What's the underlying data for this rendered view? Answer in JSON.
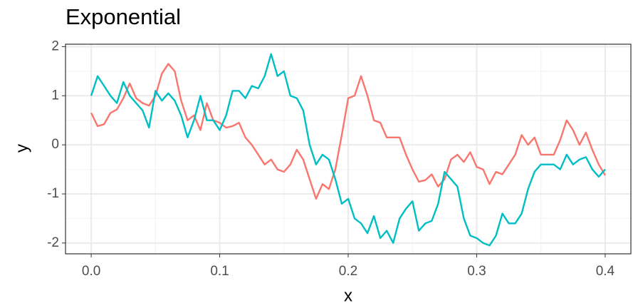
{
  "chart_data": {
    "type": "line",
    "title": "Exponential",
    "x_label": "x",
    "y_label": "y",
    "x": [
      0,
      0.005,
      0.01,
      0.015,
      0.02,
      0.025,
      0.03,
      0.035,
      0.04,
      0.045,
      0.05,
      0.055,
      0.06,
      0.065,
      0.07,
      0.075,
      0.08,
      0.085,
      0.09,
      0.095,
      0.1,
      0.105,
      0.11,
      0.115,
      0.12,
      0.125,
      0.13,
      0.135,
      0.14,
      0.145,
      0.15,
      0.155,
      0.16,
      0.165,
      0.17,
      0.175,
      0.18,
      0.185,
      0.19,
      0.195,
      0.2,
      0.205,
      0.21,
      0.215,
      0.22,
      0.225,
      0.23,
      0.235,
      0.24,
      0.245,
      0.25,
      0.255,
      0.26,
      0.265,
      0.27,
      0.275,
      0.28,
      0.285,
      0.29,
      0.295,
      0.3,
      0.305,
      0.31,
      0.315,
      0.32,
      0.325,
      0.33,
      0.335,
      0.34,
      0.345,
      0.35,
      0.355,
      0.36,
      0.365,
      0.37,
      0.375,
      0.38,
      0.385,
      0.39,
      0.395,
      0.4
    ],
    "series": [
      {
        "color": "#F8766D",
        "values": [
          0.65,
          0.38,
          0.42,
          0.65,
          0.72,
          0.95,
          1.25,
          0.95,
          0.85,
          0.8,
          1.0,
          1.45,
          1.65,
          1.5,
          0.9,
          0.5,
          0.6,
          0.3,
          0.85,
          0.5,
          0.45,
          0.35,
          0.38,
          0.45,
          0.15,
          0.0,
          -0.2,
          -0.4,
          -0.3,
          -0.5,
          -0.55,
          -0.4,
          -0.1,
          -0.3,
          -0.7,
          -1.1,
          -0.8,
          -0.9,
          -0.5,
          0.2,
          0.95,
          1.0,
          1.4,
          1.0,
          0.5,
          0.45,
          0.15,
          0.15,
          0.15,
          -0.2,
          -0.5,
          -0.75,
          -0.72,
          -0.6,
          -0.85,
          -0.7,
          -0.3,
          -0.2,
          -0.35,
          -0.15,
          -0.45,
          -0.5,
          -0.8,
          -0.55,
          -0.6,
          -0.4,
          -0.2,
          0.2,
          0.0,
          0.15,
          -0.2,
          -0.2,
          -0.2,
          0.1,
          0.5,
          0.3,
          0.0,
          0.25,
          -0.1,
          -0.4,
          -0.62
        ]
      },
      {
        "color": "#00BFC4",
        "values": [
          1.0,
          1.4,
          1.2,
          1.0,
          0.85,
          1.28,
          1.0,
          0.85,
          0.7,
          0.35,
          1.1,
          0.9,
          1.05,
          0.9,
          0.6,
          0.15,
          0.5,
          1.0,
          0.5,
          0.5,
          0.3,
          0.6,
          1.1,
          1.1,
          0.95,
          1.2,
          1.15,
          1.4,
          1.85,
          1.4,
          1.5,
          1.0,
          0.95,
          0.7,
          0.0,
          -0.4,
          -0.2,
          -0.3,
          -0.7,
          -1.2,
          -1.1,
          -1.5,
          -1.6,
          -1.8,
          -1.45,
          -1.9,
          -1.75,
          -2.0,
          -1.5,
          -1.3,
          -1.15,
          -1.75,
          -1.6,
          -1.55,
          -1.2,
          -0.55,
          -0.7,
          -0.85,
          -1.5,
          -1.85,
          -1.9,
          -2.0,
          -2.05,
          -1.85,
          -1.4,
          -1.6,
          -1.6,
          -1.4,
          -0.9,
          -0.55,
          -0.4,
          -0.4,
          -0.4,
          -0.5,
          -0.2,
          -0.4,
          -0.3,
          -0.25,
          -0.5,
          -0.65,
          -0.5
        ]
      }
    ],
    "xlim": [
      -0.02,
      0.42
    ],
    "ylim": [
      -2.22,
      2.05
    ],
    "xticks": [
      {
        "value": 0,
        "label": "0.0"
      },
      0.1,
      0.2,
      0.3,
      0.4
    ],
    "yticks": [
      -2,
      -1,
      0,
      1,
      2
    ],
    "grid": true
  }
}
